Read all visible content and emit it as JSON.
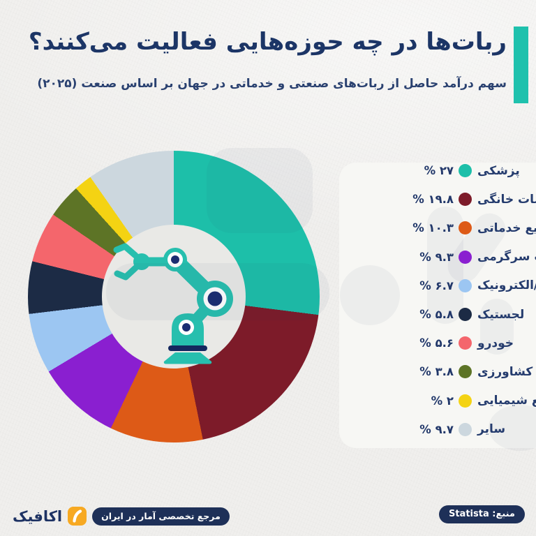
{
  "header": {
    "title": "ربات‌ها در چه حوزه‌هایی فعالیت می‌کنند؟",
    "subtitle": "سهم درآمد حاصل از ربات‌های صنعتی و خدماتی در جهان بر اساس صنعت (۲۰۲۵)",
    "accent_color": "#1fc1ad",
    "title_color": "#1c3566"
  },
  "chart_data": {
    "type": "pie",
    "donut": true,
    "start_angle_deg": 0,
    "direction": "clockwise",
    "legend_position": "right",
    "center_icon": "robot-arm",
    "unit": "%",
    "categories": [
      "پزشکی",
      "خدمات خانگی",
      "سایر صنایع خدماتی",
      "صنعت سرگرمی",
      "صنایع برق/الکترونیک",
      "لجستیک",
      "خودرو",
      "کشاورزی",
      "صنایع شیمیایی",
      "سایر"
    ],
    "values": [
      27,
      19.8,
      10.3,
      9.3,
      6.7,
      5.8,
      5.6,
      3.8,
      2,
      9.7
    ],
    "value_labels": [
      "۲۷ %",
      "۱۹.۸ %",
      "۱۰.۳ %",
      "۹.۳ %",
      "۶.۷ %",
      "۵.۸ %",
      "۵.۶ %",
      "۳.۸ %",
      "۲ %",
      "۹.۷ %"
    ],
    "colors": [
      "#1dbfa9",
      "#7d1b29",
      "#dd5a17",
      "#8a1fd0",
      "#9cc6f2",
      "#1c2b45",
      "#f4666c",
      "#5d7426",
      "#f4d313",
      "#ccd7de"
    ]
  },
  "robot_icon": {
    "primary": "#27bfae",
    "accent": "#1b2d71",
    "plate": "#14275e",
    "ring": "#ffffff"
  },
  "footer": {
    "source_label": "منبع: Statista",
    "brand_name": "اکافیک",
    "brand_tagline": "مرجع تخصصی آمار در ایران",
    "badge_color": "#1e3058",
    "logo_color": "#f7a922"
  }
}
